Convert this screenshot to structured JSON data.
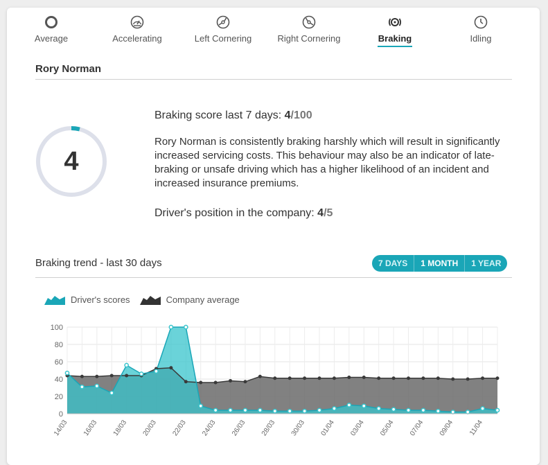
{
  "tabs": [
    {
      "label": "Average",
      "icon": "average-circle-icon",
      "active": false
    },
    {
      "label": "Accelerating",
      "icon": "speedometer-icon",
      "active": false
    },
    {
      "label": "Left Cornering",
      "icon": "steering-wheel-left-icon",
      "active": false
    },
    {
      "label": "Right Cornering",
      "icon": "steering-wheel-right-icon",
      "active": false
    },
    {
      "label": "Braking",
      "icon": "brake-disc-icon",
      "active": true
    },
    {
      "label": "Idling",
      "icon": "clock-icon",
      "active": false
    }
  ],
  "driver_name": "Rory Norman",
  "score": {
    "value": "4",
    "fraction": 0.04,
    "label": "Braking score last 7 days: ",
    "num": "4",
    "den": "/100"
  },
  "description": "Rory Norman is consistently braking harshly which will result in significantly increased servicing costs. This behaviour may also be an indicator of late-braking or unsafe driving which has a higher likelihood of an incident and increased insurance premiums.",
  "position": {
    "label": "Driver's position in the company: ",
    "num": "4",
    "den": "/5"
  },
  "trend": {
    "title": "Braking trend - last 30 days",
    "ranges": [
      {
        "label": "7 DAYS",
        "active": false
      },
      {
        "label": "1 MONTH",
        "active": true
      },
      {
        "label": "1 YEAR",
        "active": false
      }
    ]
  },
  "colors": {
    "accent": "#1aa6b7",
    "driver_fill": "#38c4cc",
    "company_fill": "#6b6b6b",
    "company_line": "#3a3a3a",
    "ring_track": "#dde0ea"
  },
  "chart_data": {
    "type": "area",
    "x": [
      "14/03",
      "15/03",
      "16/03",
      "17/03",
      "18/03",
      "19/03",
      "20/03",
      "21/03",
      "22/03",
      "23/03",
      "24/03",
      "25/03",
      "26/03",
      "27/03",
      "28/03",
      "29/03",
      "30/03",
      "31/03",
      "01/04",
      "02/04",
      "03/04",
      "04/04",
      "05/04",
      "06/04",
      "07/04",
      "08/04",
      "09/04",
      "10/04",
      "11/04",
      "12/04"
    ],
    "tick_labels": [
      "14/03",
      "16/03",
      "18/03",
      "20/03",
      "22/03",
      "24/03",
      "26/03",
      "28/03",
      "30/03",
      "01/04",
      "03/04",
      "05/04",
      "07/04",
      "09/04",
      "11/04"
    ],
    "series": [
      {
        "name": "Driver's scores",
        "values": [
          47,
          31,
          32,
          24,
          56,
          46,
          49,
          100,
          100,
          9,
          4,
          4,
          4,
          4,
          3,
          3,
          3,
          4,
          6,
          10,
          9,
          6,
          5,
          4,
          4,
          3,
          2,
          2,
          6,
          4
        ]
      },
      {
        "name": "Company average",
        "values": [
          44,
          43,
          43,
          44,
          44,
          44,
          52,
          53,
          37,
          36,
          36,
          38,
          37,
          43,
          41,
          41,
          41,
          41,
          41,
          42,
          42,
          41,
          41,
          41,
          41,
          41,
          40,
          40,
          41,
          41
        ]
      }
    ],
    "yticks": [
      "0",
      "20",
      "40",
      "60",
      "80",
      "100"
    ],
    "ylim": [
      0,
      100
    ],
    "grid": true,
    "legend": "top-left"
  }
}
